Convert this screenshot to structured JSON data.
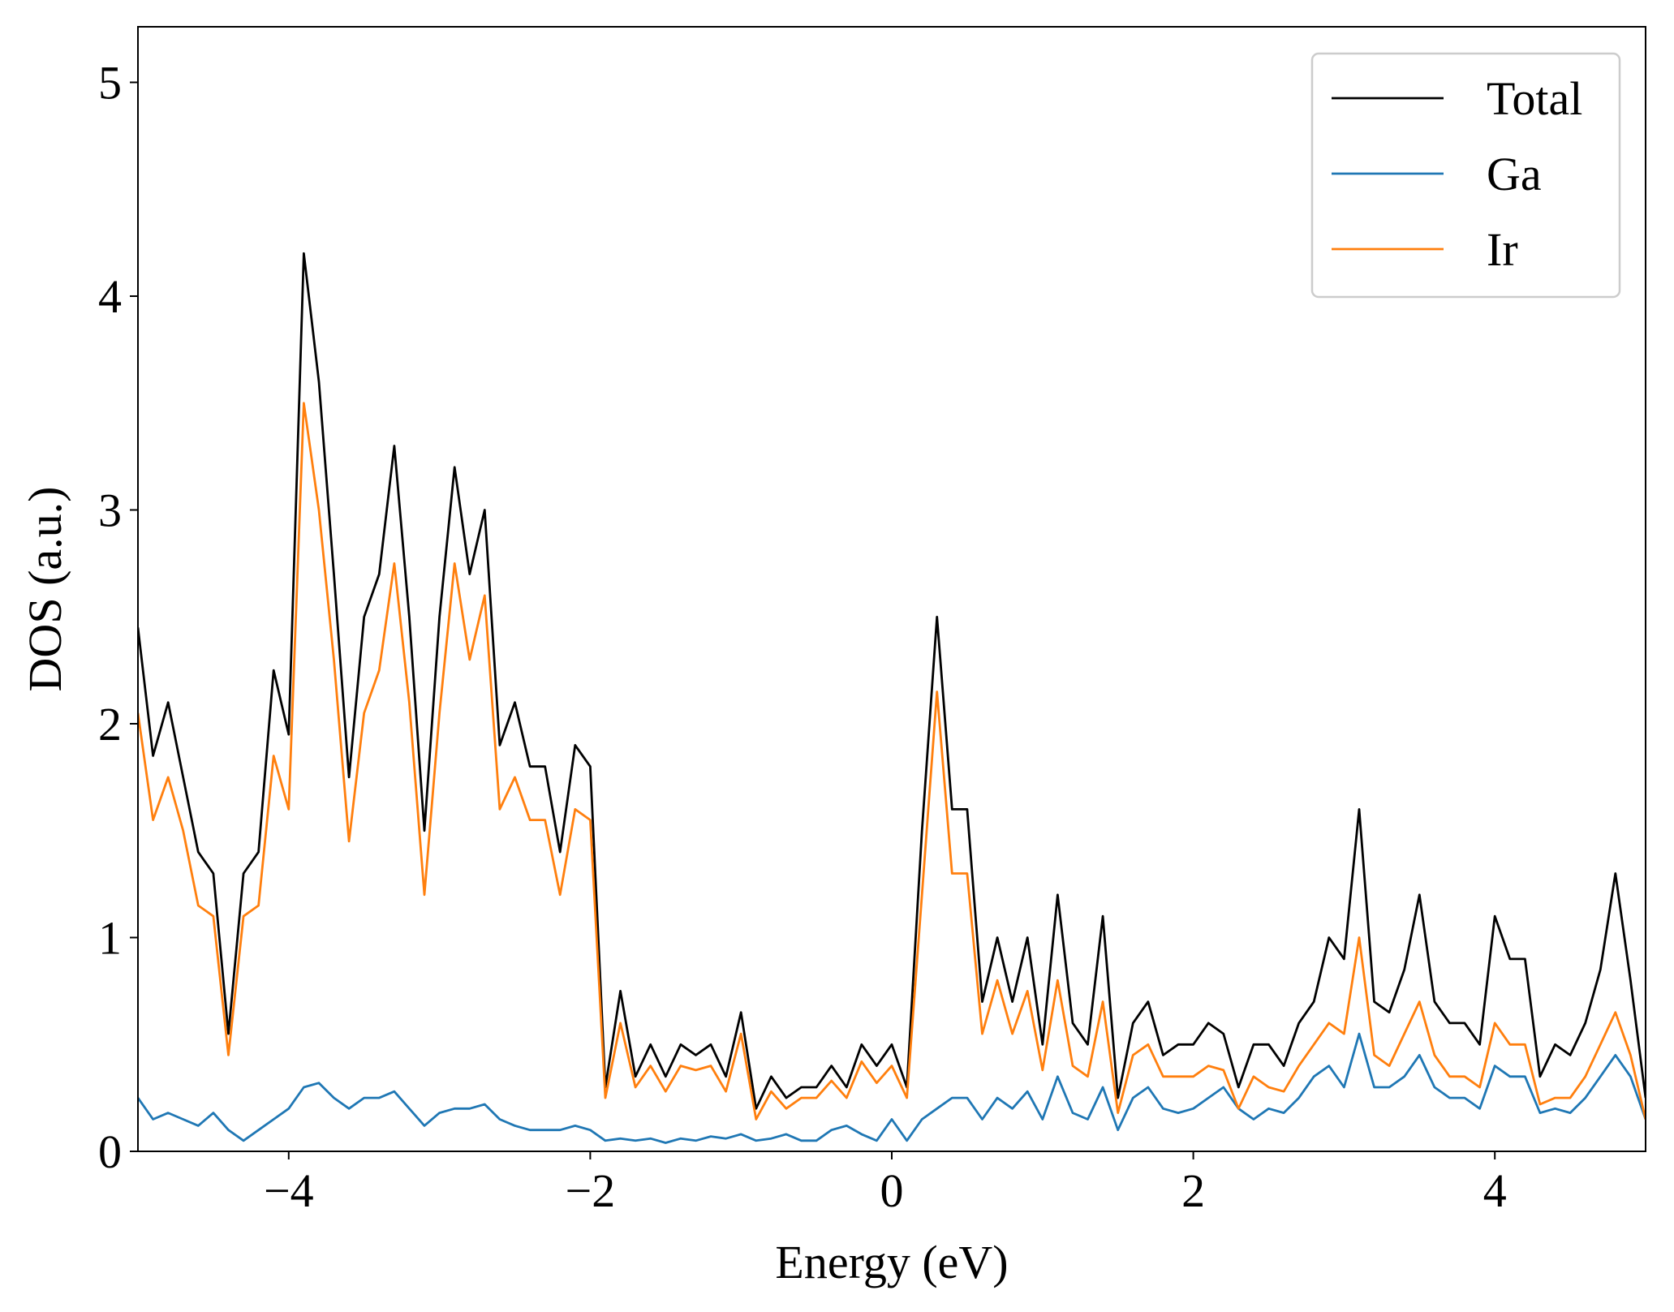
{
  "chart_data": {
    "type": "line",
    "xlabel": "Energy (eV)",
    "ylabel": "DOS (a.u.)",
    "xlim": [
      -5,
      5
    ],
    "ylim": [
      0,
      5.26
    ],
    "xticks": [
      {
        "value": -4,
        "label": "−4"
      },
      {
        "value": -2,
        "label": "−2"
      },
      0,
      2,
      4
    ],
    "yticks": [
      0,
      1,
      2,
      3,
      4,
      5
    ],
    "legend": "upper right",
    "grid": false,
    "x": [
      -5,
      -4.9,
      -4.8,
      -4.7,
      -4.6,
      -4.5,
      -4.4,
      -4.3,
      -4.2,
      -4.1,
      -4,
      -3.9,
      -3.8,
      -3.7,
      -3.6,
      -3.5,
      -3.4,
      -3.3,
      -3.2,
      -3.1,
      -3,
      -2.9,
      -2.8,
      -2.7,
      -2.6,
      -2.5,
      -2.4,
      -2.3,
      -2.2,
      -2.1,
      -2,
      -1.9,
      -1.8,
      -1.7,
      -1.6,
      -1.5,
      -1.4,
      -1.3,
      -1.2,
      -1.1,
      -1,
      -0.9,
      -0.8,
      -0.7,
      -0.6,
      -0.5,
      -0.4,
      -0.3,
      -0.2,
      -0.1,
      0,
      0.1,
      0.2,
      0.3,
      0.4,
      0.5,
      0.6,
      0.7,
      0.8,
      0.9,
      1,
      1.1,
      1.2,
      1.3,
      1.4,
      1.5,
      1.6,
      1.7,
      1.8,
      1.9,
      2,
      2.1,
      2.2,
      2.3,
      2.4,
      2.5,
      2.6,
      2.7,
      2.8,
      2.9,
      3,
      3.1,
      3.2,
      3.3,
      3.4,
      3.5,
      3.6,
      3.7,
      3.8,
      3.9,
      4,
      4.1,
      4.2,
      4.3,
      4.4,
      4.5,
      4.6,
      4.7,
      4.8,
      4.9,
      5
    ],
    "series": [
      {
        "name": "Total",
        "color": "#000000",
        "values": [
          2.45,
          1.85,
          2.1,
          1.75,
          1.4,
          1.3,
          0.55,
          1.3,
          1.4,
          2.25,
          1.95,
          4.2,
          3.6,
          2.7,
          1.75,
          2.5,
          2.7,
          3.3,
          2.5,
          1.5,
          2.5,
          3.2,
          2.7,
          3.0,
          1.9,
          2.1,
          1.8,
          1.8,
          1.4,
          1.9,
          1.8,
          0.3,
          0.75,
          0.35,
          0.5,
          0.35,
          0.5,
          0.45,
          0.5,
          0.35,
          0.65,
          0.2,
          0.35,
          0.25,
          0.3,
          0.3,
          0.4,
          0.3,
          0.5,
          0.4,
          0.5,
          0.3,
          1.5,
          2.5,
          1.6,
          1.6,
          0.7,
          1.0,
          0.7,
          1.0,
          0.5,
          1.2,
          0.6,
          0.5,
          1.1,
          0.25,
          0.6,
          0.7,
          0.45,
          0.5,
          0.5,
          0.6,
          0.55,
          0.3,
          0.5,
          0.5,
          0.4,
          0.6,
          0.7,
          1.0,
          0.9,
          1.6,
          0.7,
          0.65,
          0.85,
          1.2,
          0.7,
          0.6,
          0.6,
          0.5,
          1.1,
          0.9,
          0.9,
          0.35,
          0.5,
          0.45,
          0.6,
          0.85,
          1.3,
          0.8,
          0.25
        ]
      },
      {
        "name": "Ga",
        "color": "#1f77b4",
        "values": [
          0.25,
          0.15,
          0.18,
          0.15,
          0.12,
          0.18,
          0.1,
          0.05,
          0.1,
          0.15,
          0.2,
          0.3,
          0.32,
          0.25,
          0.2,
          0.25,
          0.25,
          0.28,
          0.2,
          0.12,
          0.18,
          0.2,
          0.2,
          0.22,
          0.15,
          0.12,
          0.1,
          0.1,
          0.1,
          0.12,
          0.1,
          0.05,
          0.06,
          0.05,
          0.06,
          0.04,
          0.06,
          0.05,
          0.07,
          0.06,
          0.08,
          0.05,
          0.06,
          0.08,
          0.05,
          0.05,
          0.1,
          0.12,
          0.08,
          0.05,
          0.15,
          0.05,
          0.15,
          0.2,
          0.25,
          0.25,
          0.15,
          0.25,
          0.2,
          0.28,
          0.15,
          0.35,
          0.18,
          0.15,
          0.3,
          0.1,
          0.25,
          0.3,
          0.2,
          0.18,
          0.2,
          0.25,
          0.3,
          0.2,
          0.15,
          0.2,
          0.18,
          0.25,
          0.35,
          0.4,
          0.3,
          0.55,
          0.3,
          0.3,
          0.35,
          0.45,
          0.3,
          0.25,
          0.25,
          0.2,
          0.4,
          0.35,
          0.35,
          0.18,
          0.2,
          0.18,
          0.25,
          0.35,
          0.45,
          0.35,
          0.15
        ]
      },
      {
        "name": "Ir",
        "color": "#ff7f0e",
        "values": [
          2.05,
          1.55,
          1.75,
          1.5,
          1.15,
          1.1,
          0.45,
          1.1,
          1.15,
          1.85,
          1.6,
          3.5,
          3.0,
          2.3,
          1.45,
          2.05,
          2.25,
          2.75,
          2.1,
          1.2,
          2.05,
          2.75,
          2.3,
          2.6,
          1.6,
          1.75,
          1.55,
          1.55,
          1.2,
          1.6,
          1.55,
          0.25,
          0.6,
          0.3,
          0.4,
          0.28,
          0.4,
          0.38,
          0.4,
          0.28,
          0.55,
          0.15,
          0.28,
          0.2,
          0.25,
          0.25,
          0.33,
          0.25,
          0.42,
          0.32,
          0.4,
          0.25,
          1.2,
          2.15,
          1.3,
          1.3,
          0.55,
          0.8,
          0.55,
          0.75,
          0.38,
          0.8,
          0.4,
          0.35,
          0.7,
          0.18,
          0.45,
          0.5,
          0.35,
          0.35,
          0.35,
          0.4,
          0.38,
          0.2,
          0.35,
          0.3,
          0.28,
          0.4,
          0.5,
          0.6,
          0.55,
          1.0,
          0.45,
          0.4,
          0.55,
          0.7,
          0.45,
          0.35,
          0.35,
          0.3,
          0.6,
          0.5,
          0.5,
          0.22,
          0.25,
          0.25,
          0.35,
          0.5,
          0.65,
          0.45,
          0.15
        ]
      }
    ]
  }
}
